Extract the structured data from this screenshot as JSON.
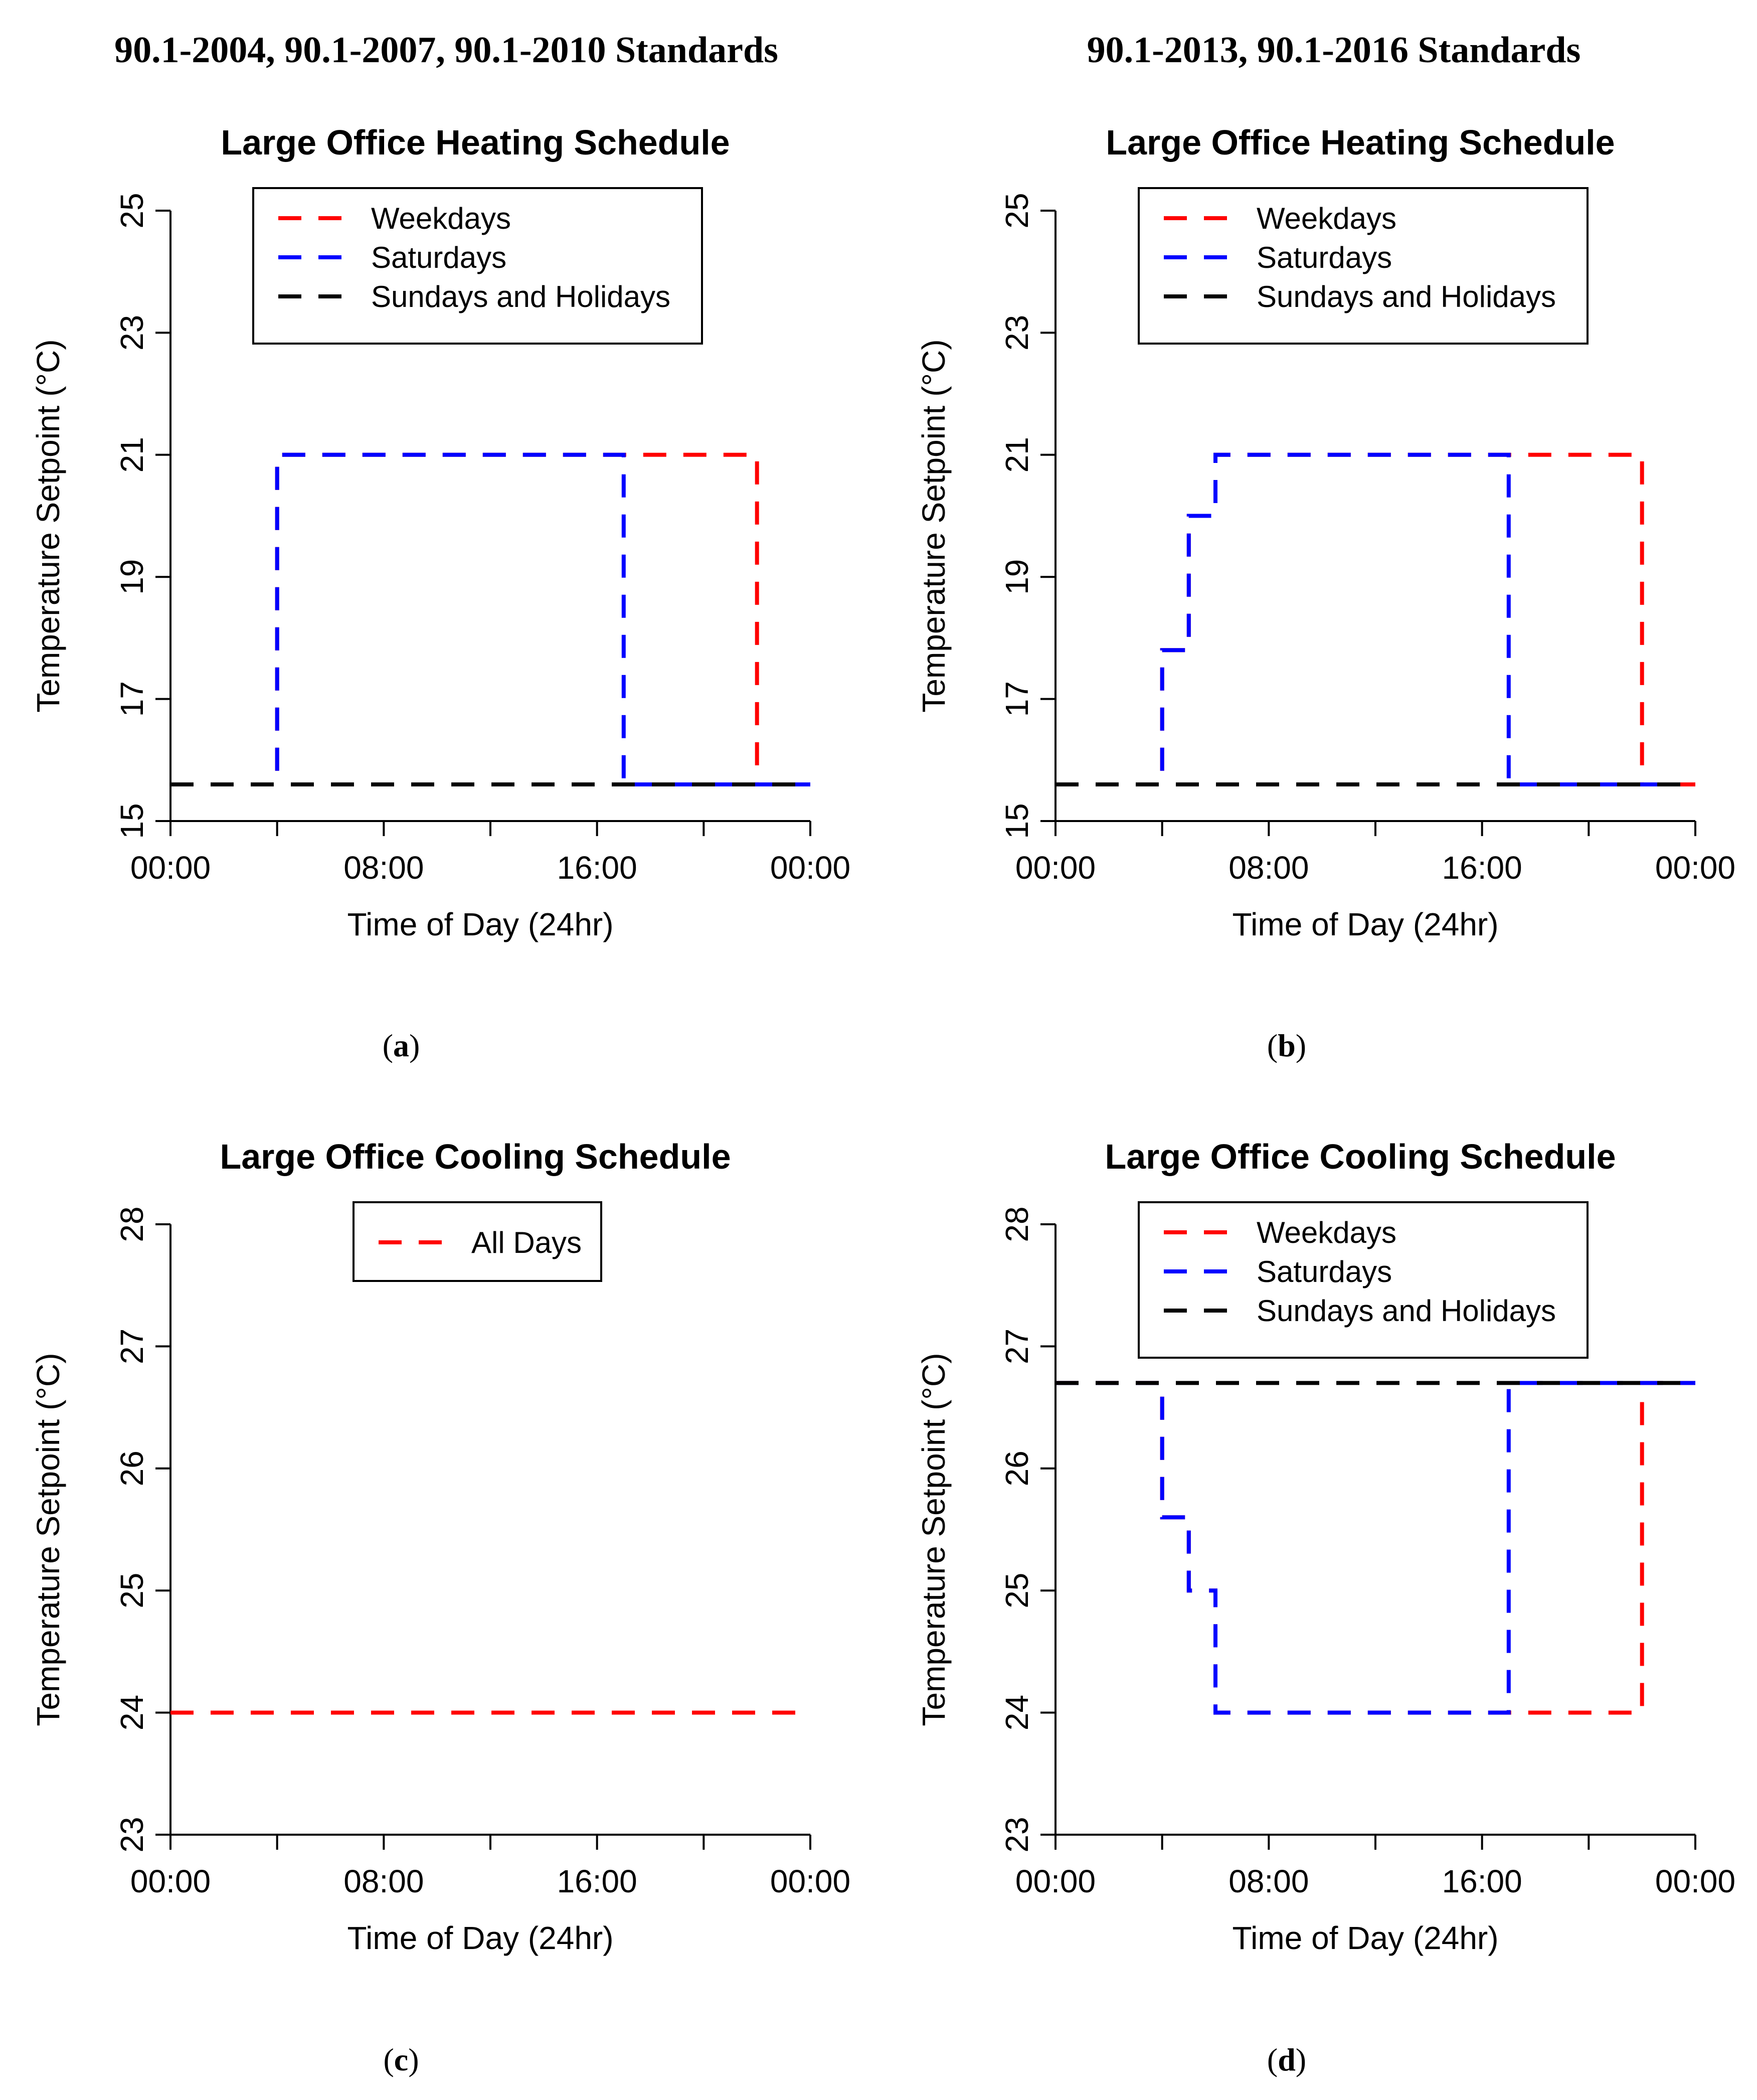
{
  "headers": {
    "left": "90.1-2004, 90.1-2007, 90.1-2010 Standards",
    "right": "90.1-2013, 90.1-2016 Standards"
  },
  "colors": {
    "red": "#ff0000",
    "blue": "#0000ff",
    "black": "#000000"
  },
  "panels": {
    "a": {
      "open": "(",
      "letter": "a",
      "close": ")"
    },
    "b": {
      "open": "(",
      "letter": "b",
      "close": ")"
    },
    "c": {
      "open": "(",
      "letter": "c",
      "close": ")"
    },
    "d": {
      "open": "(",
      "letter": "d",
      "close": ")"
    }
  },
  "chart_data": [
    {
      "id": "a",
      "type": "line",
      "step": true,
      "title": "Large Office Heating Schedule",
      "xlabel": "Time of Day (24hr)",
      "ylabel": "Temperature Setpoint (°C)",
      "xlim": [
        0,
        24
      ],
      "ylim": [
        15,
        25
      ],
      "xticks": [
        0,
        4,
        8,
        12,
        16,
        20,
        24
      ],
      "xtick_labels": [
        {
          "x": 0,
          "label": "00:00"
        },
        {
          "x": 8,
          "label": "08:00"
        },
        {
          "x": 16,
          "label": "16:00"
        },
        {
          "x": 24,
          "label": "00:00"
        }
      ],
      "yticks": [
        15,
        17,
        19,
        21,
        23,
        25
      ],
      "ytick_labels": [
        "15",
        "17",
        "19",
        "21",
        "23",
        "25"
      ],
      "legend_position": "top-right",
      "legend": [
        {
          "label": "Weekdays",
          "color": "#ff0000"
        },
        {
          "label": "Saturdays",
          "color": "#0000ff"
        },
        {
          "label": "Sundays and Holidays",
          "color": "#000000"
        }
      ],
      "series": [
        {
          "name": "Weekdays",
          "color": "#ff0000",
          "x": [
            0,
            4,
            4,
            22,
            22,
            24
          ],
          "y": [
            15.6,
            15.6,
            21,
            21,
            15.6,
            15.6
          ]
        },
        {
          "name": "Saturdays",
          "color": "#0000ff",
          "x": [
            0,
            4,
            4,
            17,
            17,
            24
          ],
          "y": [
            15.6,
            15.6,
            21,
            21,
            15.6,
            15.6
          ]
        },
        {
          "name": "Sundays and Holidays",
          "color": "#000000",
          "x": [
            0,
            24
          ],
          "y": [
            15.6,
            15.6
          ]
        }
      ]
    },
    {
      "id": "b",
      "type": "line",
      "step": true,
      "title": "Large Office Heating Schedule",
      "xlabel": "Time of Day (24hr)",
      "ylabel": "Temperature Setpoint (°C)",
      "xlim": [
        0,
        24
      ],
      "ylim": [
        15,
        25
      ],
      "xticks": [
        0,
        4,
        8,
        12,
        16,
        20,
        24
      ],
      "xtick_labels": [
        {
          "x": 0,
          "label": "00:00"
        },
        {
          "x": 8,
          "label": "08:00"
        },
        {
          "x": 16,
          "label": "16:00"
        },
        {
          "x": 24,
          "label": "00:00"
        }
      ],
      "yticks": [
        15,
        17,
        19,
        21,
        23,
        25
      ],
      "ytick_labels": [
        "15",
        "17",
        "19",
        "21",
        "23",
        "25"
      ],
      "legend_position": "top-right",
      "legend": [
        {
          "label": "Weekdays",
          "color": "#ff0000"
        },
        {
          "label": "Saturdays",
          "color": "#0000ff"
        },
        {
          "label": "Sundays and Holidays",
          "color": "#000000"
        }
      ],
      "series": [
        {
          "name": "Weekdays",
          "color": "#ff0000",
          "x": [
            0,
            4,
            4,
            5,
            5,
            6,
            6,
            22,
            22,
            24
          ],
          "y": [
            15.6,
            15.6,
            17.8,
            17.8,
            20,
            20,
            21,
            21,
            15.6,
            15.6
          ]
        },
        {
          "name": "Saturdays",
          "color": "#0000ff",
          "x": [
            0,
            4,
            4,
            5,
            5,
            6,
            6,
            17,
            17,
            23.3
          ],
          "y": [
            15.6,
            15.6,
            17.8,
            17.8,
            20,
            20,
            21,
            21,
            15.6,
            15.6
          ]
        },
        {
          "name": "Sundays and Holidays",
          "color": "#000000",
          "x": [
            0,
            24
          ],
          "y": [
            15.6,
            15.6
          ]
        }
      ]
    },
    {
      "id": "c",
      "type": "line",
      "step": true,
      "title": "Large Office Cooling Schedule",
      "xlabel": "Time of Day (24hr)",
      "ylabel": "Temperature Setpoint (°C)",
      "xlim": [
        0,
        24
      ],
      "ylim": [
        23,
        28
      ],
      "xticks": [
        0,
        4,
        8,
        12,
        16,
        20,
        24
      ],
      "xtick_labels": [
        {
          "x": 0,
          "label": "00:00"
        },
        {
          "x": 8,
          "label": "08:00"
        },
        {
          "x": 16,
          "label": "16:00"
        },
        {
          "x": 24,
          "label": "00:00"
        }
      ],
      "yticks": [
        23,
        24,
        25,
        26,
        27,
        28
      ],
      "ytick_labels": [
        "23",
        "24",
        "25",
        "26",
        "27",
        "28"
      ],
      "legend_position": "top-right",
      "legend": [
        {
          "label": "All Days",
          "color": "#ff0000"
        }
      ],
      "series": [
        {
          "name": "All Days",
          "color": "#ff0000",
          "x": [
            0,
            24
          ],
          "y": [
            24,
            24
          ]
        }
      ]
    },
    {
      "id": "d",
      "type": "line",
      "step": true,
      "title": "Large Office Cooling Schedule",
      "xlabel": "Time of Day (24hr)",
      "ylabel": "Temperature Setpoint (°C)",
      "xlim": [
        0,
        24
      ],
      "ylim": [
        23,
        28
      ],
      "xticks": [
        0,
        4,
        8,
        12,
        16,
        20,
        24
      ],
      "xtick_labels": [
        {
          "x": 0,
          "label": "00:00"
        },
        {
          "x": 8,
          "label": "08:00"
        },
        {
          "x": 16,
          "label": "16:00"
        },
        {
          "x": 24,
          "label": "00:00"
        }
      ],
      "yticks": [
        23,
        24,
        25,
        26,
        27,
        28
      ],
      "ytick_labels": [
        "23",
        "24",
        "25",
        "26",
        "27",
        "28"
      ],
      "legend_position": "top-right",
      "legend": [
        {
          "label": "Weekdays",
          "color": "#ff0000"
        },
        {
          "label": "Saturdays",
          "color": "#0000ff"
        },
        {
          "label": "Sundays and Holidays",
          "color": "#000000"
        }
      ],
      "series": [
        {
          "name": "Weekdays",
          "color": "#ff0000",
          "x": [
            0,
            4,
            4,
            5,
            5,
            6,
            6,
            22,
            22,
            24
          ],
          "y": [
            26.7,
            26.7,
            25.6,
            25.6,
            25,
            25,
            24,
            24,
            26.7,
            26.7
          ]
        },
        {
          "name": "Saturdays",
          "color": "#0000ff",
          "x": [
            0,
            4,
            4,
            5,
            5,
            6,
            6,
            17,
            17,
            24
          ],
          "y": [
            26.7,
            26.7,
            25.6,
            25.6,
            25,
            25,
            24,
            24,
            26.7,
            26.7
          ]
        },
        {
          "name": "Sundays and Holidays",
          "color": "#000000",
          "x": [
            0,
            24
          ],
          "y": [
            26.7,
            26.7
          ]
        }
      ]
    }
  ]
}
